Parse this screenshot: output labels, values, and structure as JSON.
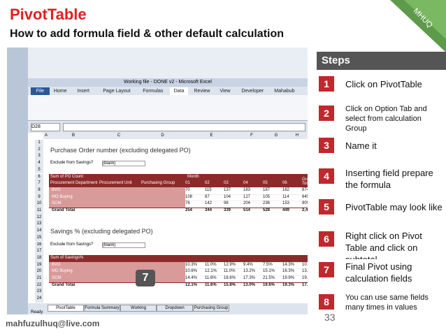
{
  "header": {
    "title": "PivotTable",
    "subtitle": "How to add formula field & other default calculation",
    "badge": "MHUQ"
  },
  "steps": {
    "heading": "Steps",
    "items": [
      {
        "number": "1",
        "text": "Click on PivotTable"
      },
      {
        "number": "2",
        "text": "Click on Option Tab and select from calculation Group"
      },
      {
        "number": "3",
        "text": "Name it"
      },
      {
        "number": "4",
        "text": "Inserting field prepare the formula"
      },
      {
        "number": "5",
        "text": "PivotTable may look like"
      },
      {
        "number": "6",
        "text": "Right click on Pivot Table and click on subtotal"
      },
      {
        "number": "7",
        "text": "Final Pivot using calculation fields"
      },
      {
        "number": "8",
        "text": "You can use same fields many times in values"
      }
    ]
  },
  "footer": {
    "email": "mahfuzulhuq@live.com",
    "page": "33"
  },
  "callout": "7",
  "excel": {
    "window_title": "Working file - DONE v2 - Microsoft Excel",
    "tabs": [
      "File",
      "Home",
      "Insert",
      "Page Layout",
      "Formulas",
      "Data",
      "Review",
      "View",
      "Developer",
      "Mahabub"
    ],
    "name_box": "D28",
    "columns": [
      "A",
      "B",
      "C",
      "D",
      "E",
      "F",
      "G",
      "H"
    ],
    "row_numbers": [
      "1",
      "2",
      "3",
      "4",
      "5",
      "6",
      "7",
      "8",
      "9",
      "10",
      "11",
      "12",
      "13",
      "14",
      "15",
      "16",
      "17",
      "18",
      "19",
      "20",
      "21",
      "22",
      "23",
      "24"
    ],
    "table1": {
      "title": "Purchase Order number (excluding delegated PO)",
      "filter_label": "Exclude from Savings?",
      "filter_value": "(blank)",
      "corner": "Sum of PO Count",
      "month_label": "Month",
      "headers": [
        "Procurement Department",
        "Procurement Unit",
        "Purchasing Group",
        "01",
        "02",
        "03",
        "04",
        "05",
        "06",
        "Grand Total"
      ],
      "rows": [
        [
          "BVG",
          "70",
          "115",
          "137",
          "183",
          "187",
          "182",
          "874"
        ],
        [
          "MO Buying",
          "108",
          "87",
          "104",
          "127",
          "105",
          "114",
          "645"
        ],
        [
          "SCM",
          "76",
          "142",
          "98",
          "204",
          "236",
          "153",
          "909"
        ],
        [
          "Grand Total",
          "254",
          "344",
          "339",
          "514",
          "528",
          "449",
          "2,428"
        ]
      ]
    },
    "table2": {
      "title": "Savings % (excluding delegated PO)",
      "filter_label": "Exclude from Savings?",
      "filter_value": "(blank)",
      "corner": "Sum of Savings%",
      "rows": [
        [
          "BVG",
          "10.3%",
          "11.0%",
          "12.9%",
          "9.4%",
          "7.5%",
          "14.3%",
          "10.7%"
        ],
        [
          "MO Buying",
          "10.6%",
          "12.1%",
          "11.0%",
          "13.2%",
          "15.1%",
          "16.3%",
          "13.1%"
        ],
        [
          "SCM",
          "14.4%",
          "11.6%",
          "18.6%",
          "17.3%",
          "21.5%",
          "19.9%",
          "19.7%"
        ],
        [
          "Grand Total",
          "12.1%",
          "11.6%",
          "15.8%",
          "13.0%",
          "19.6%",
          "19.3%",
          "17.1%"
        ]
      ]
    },
    "sheet_tabs": [
      "PivotTable",
      "Formula Summary",
      "Working",
      "Dropdown",
      "Purchasing Group"
    ],
    "status": "Ready"
  }
}
